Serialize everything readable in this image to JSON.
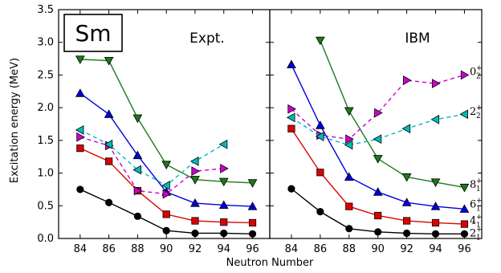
{
  "chart_data": {
    "type": "line",
    "element": "Sm",
    "ylabel": "Excitation energy (MeV)",
    "xlabel": "Neutron Number",
    "ylim": [
      0,
      3.5
    ],
    "yticks": [
      "0.0",
      "0.5",
      "1.0",
      "1.5",
      "2.0",
      "2.5",
      "3.0",
      "3.5"
    ],
    "xlim": [
      82.5,
      97.2
    ],
    "xticks": [
      "84",
      "86",
      "88",
      "90",
      "92",
      "94",
      "96"
    ],
    "panels": [
      {
        "title": "Expt.",
        "series": [
          {
            "key": "2_1",
            "color": "#000000",
            "marker": "circle",
            "dash": false,
            "points": [
              [
                84,
                0.75
              ],
              [
                86,
                0.55
              ],
              [
                88,
                0.34
              ],
              [
                90,
                0.12
              ],
              [
                92,
                0.08
              ],
              [
                94,
                0.08
              ],
              [
                96,
                0.07
              ]
            ]
          },
          {
            "key": "4_1",
            "color": "#dd0000",
            "marker": "square",
            "dash": false,
            "points": [
              [
                84,
                1.38
              ],
              [
                86,
                1.18
              ],
              [
                88,
                0.73
              ],
              [
                90,
                0.37
              ],
              [
                92,
                0.27
              ],
              [
                94,
                0.25
              ],
              [
                96,
                0.24
              ]
            ]
          },
          {
            "key": "6_1",
            "color": "#0000dd",
            "marker": "triangle-up",
            "dash": false,
            "points": [
              [
                84,
                2.22
              ],
              [
                86,
                1.9
              ],
              [
                88,
                1.27
              ],
              [
                90,
                0.71
              ],
              [
                92,
                0.54
              ],
              [
                94,
                0.51
              ],
              [
                96,
                0.49
              ]
            ]
          },
          {
            "key": "8_1",
            "color": "#1a7a1a",
            "marker": "triangle-down",
            "dash": false,
            "points": [
              [
                84,
                2.74
              ],
              [
                86,
                2.72
              ],
              [
                88,
                1.84
              ],
              [
                90,
                1.13
              ],
              [
                92,
                0.9
              ],
              [
                94,
                0.87
              ],
              [
                96,
                0.85
              ]
            ]
          },
          {
            "key": "0_2",
            "color": "#cc00cc",
            "marker": "triangle-right",
            "dash": true,
            "points": [
              [
                84,
                1.55
              ],
              [
                86,
                1.42
              ],
              [
                88,
                0.73
              ],
              [
                90,
                0.68
              ],
              [
                92,
                1.03
              ],
              [
                94,
                1.07
              ]
            ]
          },
          {
            "key": "2_2",
            "color": "#00bbbb",
            "marker": "triangle-left",
            "dash": true,
            "points": [
              [
                84,
                1.66
              ],
              [
                86,
                1.44
              ],
              [
                88,
                1.05
              ],
              [
                90,
                0.81
              ],
              [
                92,
                1.18
              ],
              [
                94,
                1.44
              ]
            ]
          }
        ]
      },
      {
        "title": "IBM",
        "series": [
          {
            "key": "2_1",
            "color": "#000000",
            "marker": "circle",
            "dash": false,
            "points": [
              [
                84,
                0.76
              ],
              [
                86,
                0.41
              ],
              [
                88,
                0.15
              ],
              [
                90,
                0.1
              ],
              [
                92,
                0.08
              ],
              [
                94,
                0.07
              ],
              [
                96,
                0.07
              ]
            ]
          },
          {
            "key": "4_1",
            "color": "#dd0000",
            "marker": "square",
            "dash": false,
            "points": [
              [
                84,
                1.68
              ],
              [
                86,
                1.01
              ],
              [
                88,
                0.49
              ],
              [
                90,
                0.35
              ],
              [
                92,
                0.27
              ],
              [
                94,
                0.24
              ],
              [
                96,
                0.22
              ]
            ]
          },
          {
            "key": "6_1",
            "color": "#0000dd",
            "marker": "triangle-up",
            "dash": false,
            "points": [
              [
                84,
                2.66
              ],
              [
                86,
                1.73
              ],
              [
                88,
                0.94
              ],
              [
                90,
                0.71
              ],
              [
                92,
                0.55
              ],
              [
                94,
                0.49
              ],
              [
                96,
                0.45
              ]
            ]
          },
          {
            "key": "8_1",
            "color": "#1a7a1a",
            "marker": "triangle-down",
            "dash": false,
            "points": [
              [
                86,
                3.03
              ],
              [
                88,
                1.95
              ],
              [
                90,
                1.22
              ],
              [
                92,
                0.94
              ],
              [
                94,
                0.86
              ],
              [
                96,
                0.78
              ]
            ]
          },
          {
            "key": "0_2",
            "color": "#cc00cc",
            "marker": "triangle-right",
            "dash": true,
            "points": [
              [
                84,
                1.98
              ],
              [
                86,
                1.58
              ],
              [
                88,
                1.52
              ],
              [
                90,
                1.92
              ],
              [
                92,
                2.42
              ],
              [
                94,
                2.37
              ],
              [
                96,
                2.5
              ]
            ]
          },
          {
            "key": "2_2",
            "color": "#00bbbb",
            "marker": "triangle-left",
            "dash": true,
            "points": [
              [
                84,
                1.85
              ],
              [
                86,
                1.56
              ],
              [
                88,
                1.43
              ],
              [
                90,
                1.52
              ],
              [
                92,
                1.68
              ],
              [
                94,
                1.82
              ],
              [
                96,
                1.9
              ]
            ]
          }
        ]
      }
    ],
    "state_labels": [
      {
        "key": "0_2",
        "base": "0",
        "sup": "+",
        "sub": "2",
        "y": 2.55
      },
      {
        "key": "2_2",
        "base": "2",
        "sup": "+",
        "sub": "2",
        "y": 1.94
      },
      {
        "key": "8_1",
        "base": "8",
        "sup": "+",
        "sub": "1",
        "y": 0.82
      },
      {
        "key": "6_1",
        "base": "6",
        "sup": "+",
        "sub": "1",
        "y": 0.52
      },
      {
        "key": "4_1",
        "base": "4",
        "sup": "+",
        "sub": "1",
        "y": 0.27
      },
      {
        "key": "2_1",
        "base": "2",
        "sup": "+",
        "sub": "1",
        "y": 0.08
      }
    ]
  }
}
